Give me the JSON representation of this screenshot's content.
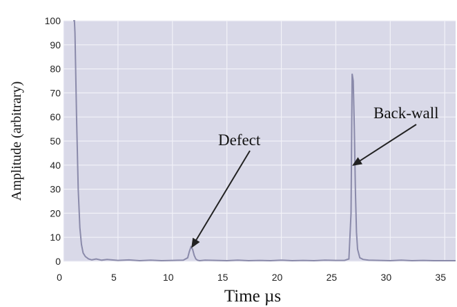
{
  "chart_data": {
    "type": "line",
    "title": "",
    "xlabel": "Time µs",
    "ylabel": "Amplitude (arbitrary)",
    "xlim": [
      0,
      36
    ],
    "ylim": [
      0,
      100
    ],
    "x_ticks": [
      0,
      5,
      10,
      15,
      20,
      25,
      30,
      35
    ],
    "y_ticks": [
      0,
      10,
      20,
      30,
      40,
      50,
      60,
      70,
      80,
      90,
      100
    ],
    "grid": true,
    "colors": {
      "plot_bg": "#d9d9e8",
      "grid": "#f2f2f8",
      "line": "#8a8aaa",
      "arrow": "#222222"
    },
    "series": [
      {
        "x": [
          0.9,
          1.0,
          1.05,
          1.2,
          1.35,
          1.5,
          1.65,
          1.8,
          2.0,
          2.3,
          2.6,
          3.0,
          3.5,
          4.0,
          5.0,
          6.0,
          7.0,
          8.0,
          9.0,
          10.0,
          11.0,
          11.4,
          11.55,
          11.7,
          11.85,
          12.0,
          12.15,
          12.3,
          12.5,
          13.0,
          14.0,
          15.0,
          16.0,
          17.0,
          18.0,
          19.0,
          20.0,
          21.0,
          22.0,
          23.0,
          24.0,
          25.0,
          25.8,
          26.2,
          26.4,
          26.5,
          26.6,
          26.7,
          26.8,
          26.9,
          27.0,
          27.2,
          27.5,
          28.0,
          29.0,
          30.0,
          31.0,
          32.0,
          33.0,
          34.0,
          35.0,
          36.0
        ],
        "values": [
          100,
          100,
          95,
          60,
          30,
          14,
          7,
          3.5,
          2,
          1,
          0.6,
          1,
          0.5,
          0.8,
          0.4,
          0.6,
          0.3,
          0.5,
          0.3,
          0.4,
          0.5,
          1.5,
          4,
          6,
          5,
          2.5,
          1,
          0.5,
          0.3,
          0.5,
          0.4,
          0.3,
          0.5,
          0.3,
          0.4,
          0.3,
          0.5,
          0.3,
          0.4,
          0.3,
          0.5,
          0.4,
          0.4,
          1,
          20,
          78,
          75,
          55,
          30,
          12,
          5,
          1.5,
          0.8,
          0.5,
          0.4,
          0.3,
          0.5,
          0.3,
          0.4,
          0.3,
          0.3,
          0.3
        ]
      }
    ],
    "annotations": [
      {
        "text": "Defect",
        "points_to": [
          11.8,
          6
        ]
      },
      {
        "text": "Back-wall",
        "points_to": [
          26.6,
          40
        ]
      }
    ]
  }
}
